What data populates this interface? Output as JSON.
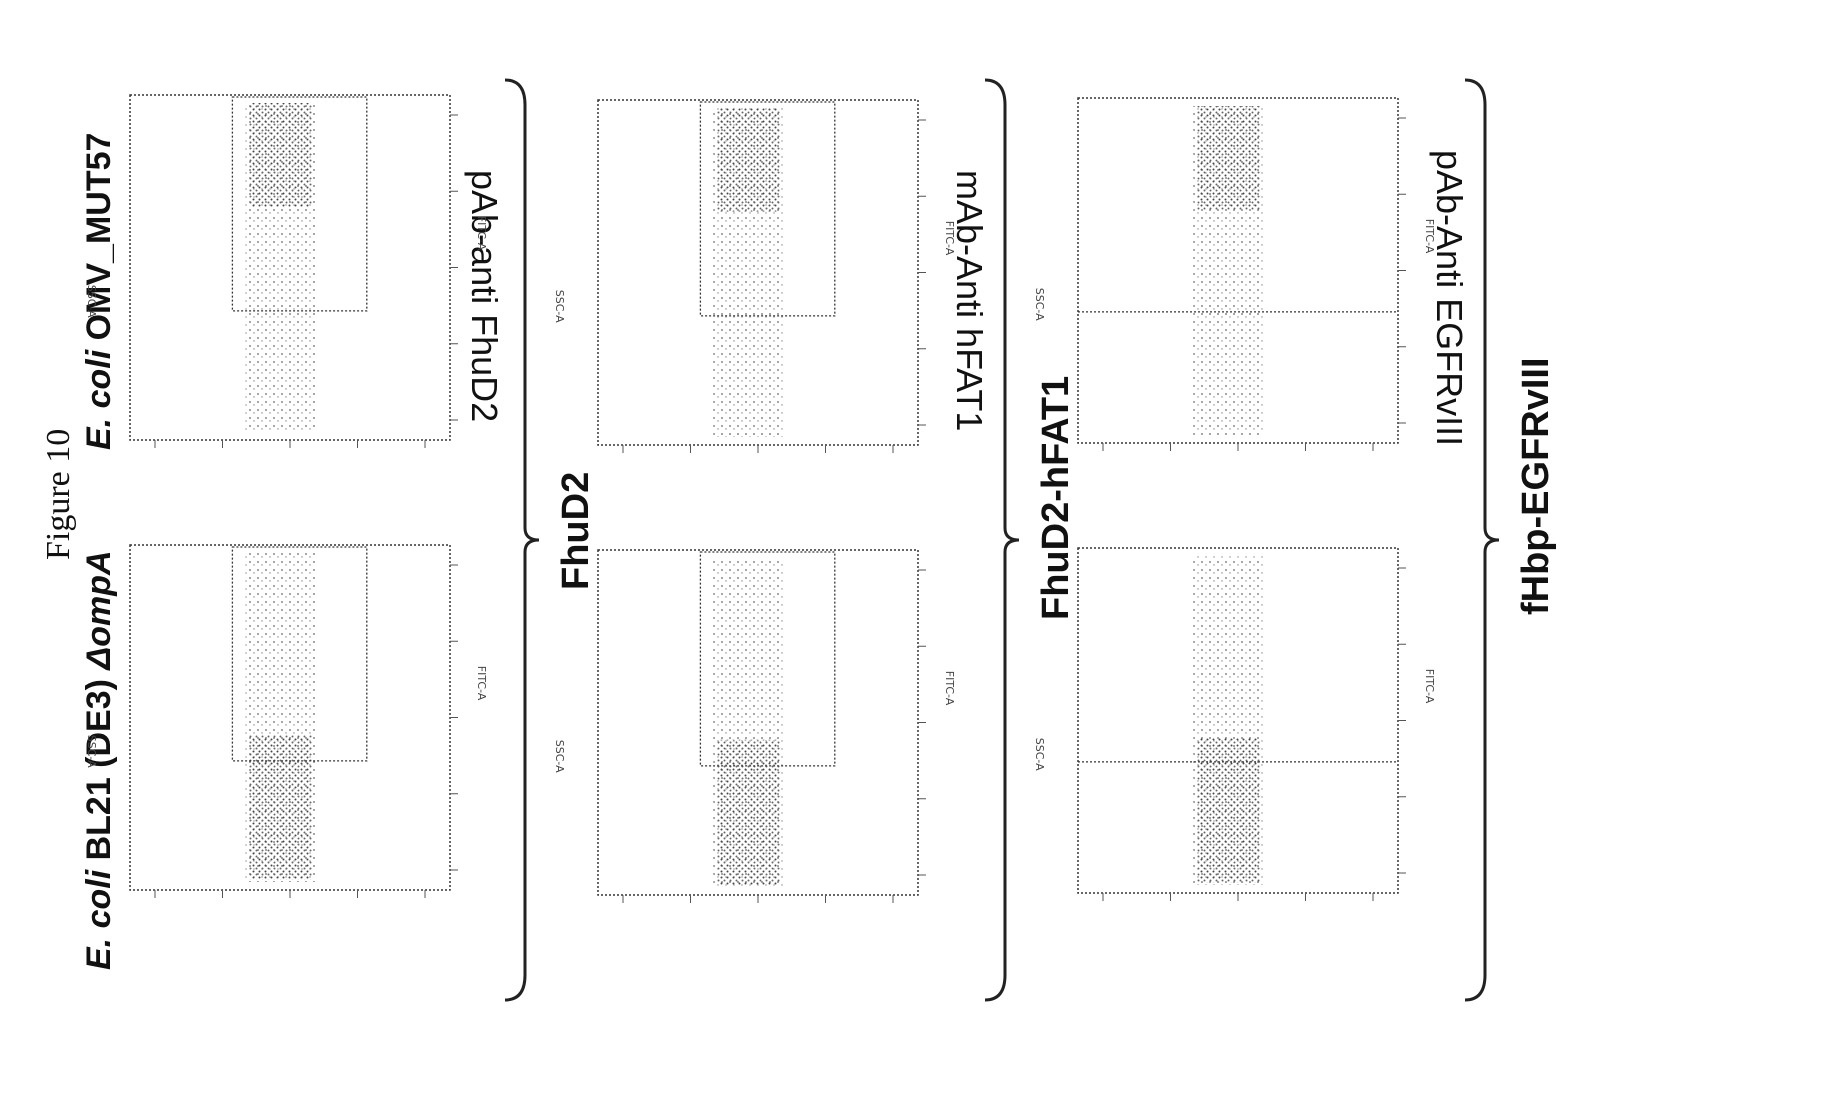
{
  "figure_title": "Figure 10",
  "columns": {
    "left": {
      "italic": "E. coli",
      "rest": " BL21 (DE3) ",
      "italic2": "ΔompA"
    },
    "right": {
      "italic": "E. coli",
      "rest": " OMV_MUT57"
    }
  },
  "groups": [
    "FhuD2",
    "FhuD2-hFAT1",
    "fHbp-EGFRvIII"
  ],
  "antibodies": [
    "pAb-anti FhuD2",
    "mAb-Anti hFAT1",
    "pAb-Anti EGFRvIII"
  ],
  "axis": {
    "y_label": "SSC-A",
    "x_label": "FITC-A"
  },
  "chart_data": [
    {
      "type": "scatter",
      "panel": "FhuD2 / E. coli BL21 (DE3) ΔompA",
      "gate": "positive",
      "note": ""
    },
    {
      "type": "scatter",
      "panel": "FhuD2 / E. coli OMV_MUT57",
      "gate": "positive"
    },
    {
      "type": "scatter",
      "panel": "FhuD2-hFAT1 / E. coli BL21 (DE3) ΔompA",
      "gate": "positive"
    },
    {
      "type": "scatter",
      "panel": "FhuD2-hFAT1 / E. coli OMV_MUT57",
      "gate": "positive"
    },
    {
      "type": "scatter",
      "panel": "fHbp-EGFRvIII / E. coli BL21 (DE3) ΔompA",
      "gate": "quadrant"
    },
    {
      "type": "scatter",
      "panel": "fHbp-EGFRvIII / E. coli OMV_MUT57",
      "gate": "quadrant"
    }
  ]
}
